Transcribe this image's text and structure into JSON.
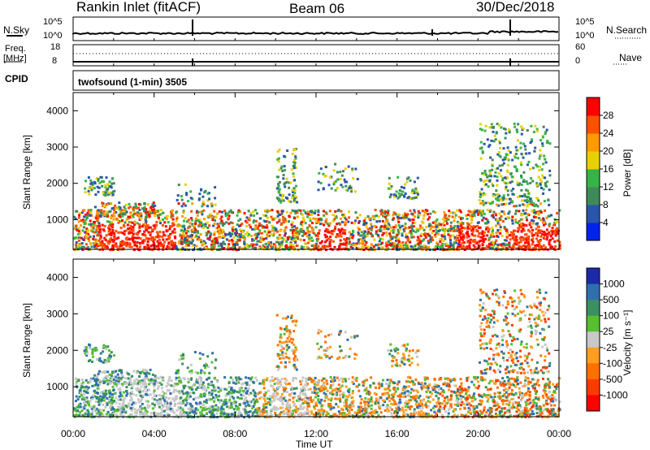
{
  "header": {
    "site": "Rankin Inlet (fitACF)",
    "beam": "Beam 06",
    "date": "30/Dec/2018"
  },
  "noise_panel": {
    "left_label": "N.Sky",
    "right_label": "N.Search",
    "tick_top": "10^5",
    "tick_bottom": "10^0"
  },
  "freq_panel": {
    "left_label_1": "Freq.",
    "left_label_2": "[MHz]",
    "tick_top": "18",
    "tick_bottom": "8",
    "right_label": "Nave",
    "right_tick_top": "60",
    "right_tick_bottom": "0"
  },
  "cpid": {
    "label": "CPID",
    "value": "twofsound (1-min) 3505"
  },
  "colors": {
    "power_scale": [
      "#0022ee",
      "#2a55aa",
      "#3f8a5a",
      "#35b545",
      "#e8d000",
      "#ff9a00",
      "#ff5000",
      "#ff0000"
    ],
    "velocity_scale": [
      "#1a2aa8",
      "#2f6fb0",
      "#3a9060",
      "#55c030",
      "#c8c8c8",
      "#ff9f1f",
      "#ff7000",
      "#ff3a00",
      "#ff0000"
    ]
  },
  "chart_data": [
    {
      "type": "heatmap",
      "name": "Power",
      "ylabel": "Slant Range [km]",
      "yticks": [
        "1000",
        "2000",
        "3000",
        "4000"
      ],
      "ylim": [
        180,
        4500
      ],
      "xlim": [
        "00:00",
        "24:00"
      ],
      "colorbar": {
        "label": "Power [dB]",
        "range": [
          0,
          32
        ],
        "ticks": [
          "4",
          "8",
          "12",
          "16",
          "20",
          "24",
          "28"
        ]
      }
    },
    {
      "type": "heatmap",
      "name": "Velocity",
      "ylabel": "Slant Range [km]",
      "yticks": [
        "1000",
        "2000",
        "3000",
        "4000"
      ],
      "ylim": [
        180,
        4500
      ],
      "xlim": [
        "00:00",
        "24:00"
      ],
      "xlabel": "Time UT",
      "xticks": [
        "00:00",
        "04:00",
        "08:00",
        "12:00",
        "16:00",
        "20:00",
        "00:00"
      ],
      "colorbar": {
        "label": "Velocity [m s⁻¹]",
        "ticks": [
          "1000",
          "500",
          "100",
          "25",
          "-25",
          "-100",
          "-500",
          "-1000"
        ]
      }
    }
  ]
}
